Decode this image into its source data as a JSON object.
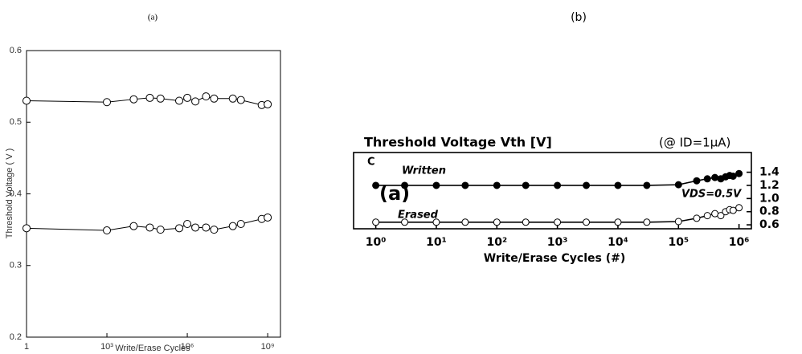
{
  "chart_data": [
    {
      "type": "line",
      "panel": "(a)",
      "xscale": "log",
      "y_side": "left",
      "ylabel": "Threshold Voltage ( V )",
      "xlabel": "Write/Erase Cycles",
      "xlim": [
        1,
        3000000000
      ],
      "ylim": [
        0.2,
        0.6
      ],
      "xticks": [
        1,
        {
          "value": 1000,
          "label": "10³"
        },
        {
          "value": 1000000,
          "label": "10⁶"
        },
        {
          "value": 1000000000,
          "label": "10⁹"
        }
      ],
      "yticks": [
        0.2,
        0.3,
        0.4,
        0.5,
        0.6
      ],
      "x": [
        1,
        1000,
        10000,
        40000,
        100000,
        500000,
        1000000,
        2000000,
        5000000,
        10000000,
        50000000,
        100000000,
        600000000,
        1000000000
      ],
      "series": [
        {
          "color": "#000000",
          "marker": "open",
          "values": [
            0.53,
            0.528,
            0.532,
            0.534,
            0.533,
            0.53,
            0.534,
            0.529,
            0.536,
            0.533,
            0.533,
            0.531,
            0.524,
            0.525
          ]
        },
        {
          "color": "#000000",
          "marker": "open",
          "values": [
            0.352,
            0.349,
            0.355,
            0.353,
            0.35,
            0.352,
            0.358,
            0.353,
            0.353,
            0.35,
            0.355,
            0.358,
            0.365,
            0.367
          ]
        }
      ]
    },
    {
      "type": "line",
      "panel": "(b)",
      "xscale": "log",
      "y_side": "right",
      "title": "Threshold Voltage Vth [V]",
      "subtitle": "(@ ID=1μA)",
      "xlabel": "Write/Erase Cycles (#)",
      "annotations": [
        "C",
        "Written",
        "(a)",
        "Erased",
        "VDS=0.5V"
      ],
      "xlim": [
        0.43,
        1600000
      ],
      "ylim": [
        0.54,
        1.7
      ],
      "xticks": [
        {
          "value": 1,
          "label": "10⁰"
        },
        {
          "value": 10,
          "label": "10¹"
        },
        {
          "value": 100,
          "label": "10²"
        },
        {
          "value": 1000,
          "label": "10³"
        },
        {
          "value": 10000,
          "label": "10⁴"
        },
        {
          "value": 100000,
          "label": "10⁵"
        },
        {
          "value": 1000000,
          "label": "10⁶"
        }
      ],
      "yticks": [
        0.6,
        0.8,
        {
          "value": 1,
          "label": "1.0"
        },
        1.2,
        1.4
      ],
      "x": [
        1,
        3,
        10,
        30,
        100,
        300,
        1000,
        3000,
        10000,
        30000,
        100000,
        200000,
        300000,
        400000,
        500000,
        600000,
        700000,
        800000,
        1000000
      ],
      "series": [
        {
          "color": "#000000",
          "marker": "filled",
          "values": [
            1.2,
            1.2,
            1.2,
            1.2,
            1.2,
            1.2,
            1.2,
            1.2,
            1.2,
            1.2,
            1.21,
            1.27,
            1.3,
            1.32,
            1.3,
            1.33,
            1.35,
            1.34,
            1.38
          ]
        },
        {
          "color": "#000000",
          "marker": "open",
          "values": [
            0.64,
            0.64,
            0.64,
            0.64,
            0.64,
            0.64,
            0.64,
            0.64,
            0.64,
            0.64,
            0.65,
            0.7,
            0.74,
            0.77,
            0.74,
            0.8,
            0.83,
            0.82,
            0.86
          ]
        }
      ]
    }
  ]
}
